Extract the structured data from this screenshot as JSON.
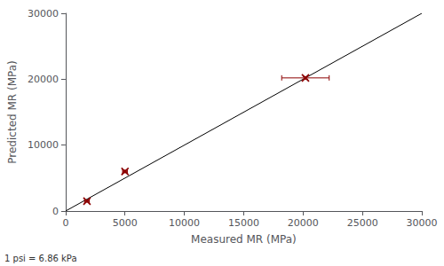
{
  "chart_data": {
    "type": "scatter",
    "title": "",
    "xlabel": "Measured MR (MPa)",
    "ylabel": "Predicted MR (MPa)",
    "annotations": [
      "1 psi = 6.86 kPa"
    ],
    "xlim": [
      0,
      30000
    ],
    "ylim": [
      0,
      30000
    ],
    "xticks": [
      0,
      5000,
      10000,
      15000,
      20000,
      25000,
      30000
    ],
    "yticks": [
      0,
      10000,
      20000,
      30000
    ],
    "grid": false,
    "series": [
      {
        "type": "line",
        "x": [
          0,
          30000
        ],
        "values": [
          0,
          30000
        ],
        "color": "#000000",
        "line_style": "solid"
      },
      {
        "type": "scatter",
        "x": [
          1800,
          5000,
          20200
        ],
        "values": [
          1500,
          6000,
          20200
        ],
        "xerr": [
          200,
          200,
          2000
        ],
        "yerr": [
          150,
          200,
          200
        ],
        "color": "#8b0000",
        "marker": "x"
      }
    ]
  }
}
